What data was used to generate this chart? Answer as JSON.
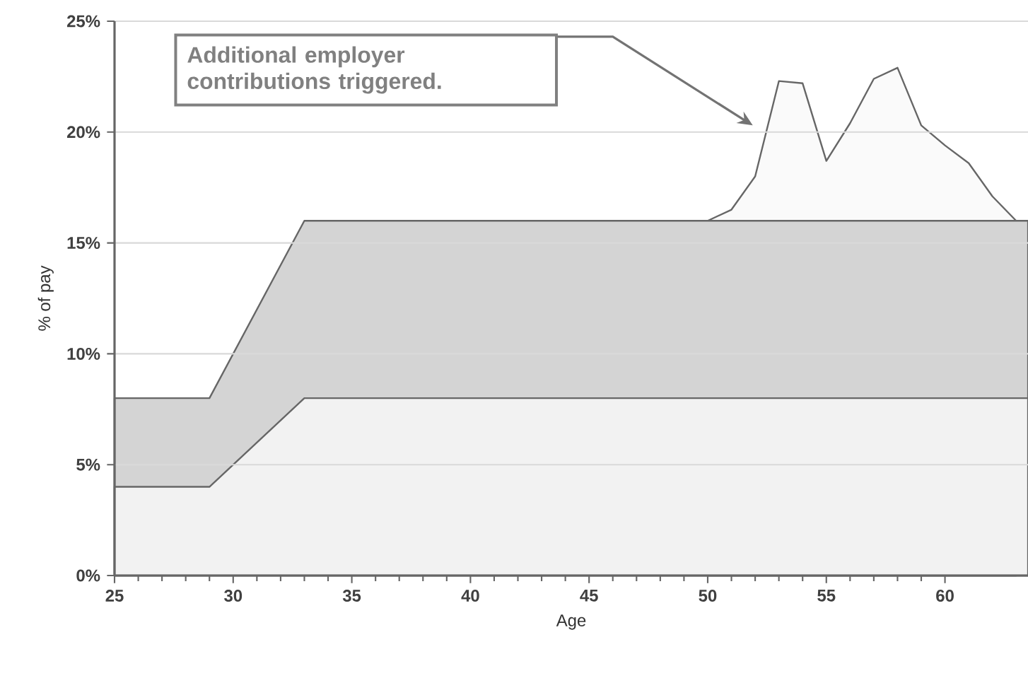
{
  "chart_data": {
    "type": "area",
    "xlabel": "Age",
    "ylabel": "% of pay",
    "xlim": [
      25,
      63.5
    ],
    "xticks": [
      25,
      30,
      35,
      40,
      45,
      50,
      55,
      60
    ],
    "ylim": [
      0,
      25
    ],
    "yticks": [
      {
        "value": 0,
        "label": "0%"
      },
      {
        "value": 5,
        "label": "5%"
      },
      {
        "value": 10,
        "label": "10%"
      },
      {
        "value": 15,
        "label": "15%"
      },
      {
        "value": 20,
        "label": "20%"
      },
      {
        "value": 25,
        "label": "25%"
      }
    ],
    "grid": "y",
    "series": [
      {
        "color": "#fafafa",
        "x": [
          50,
          51,
          52,
          53,
          54,
          55,
          56,
          57,
          58,
          59,
          60,
          61,
          62,
          63
        ],
        "values": [
          16,
          16.5,
          18,
          22.3,
          22.2,
          18.7,
          20.4,
          22.4,
          22.9,
          20.3,
          19.4,
          18.6,
          17.1,
          16
        ]
      },
      {
        "color": "#d4d4d4",
        "x": [
          25,
          29,
          33,
          63.5
        ],
        "values": [
          8,
          8,
          16,
          16
        ]
      },
      {
        "color": "#f2f2f2",
        "x": [
          25,
          29,
          33,
          63.5
        ],
        "values": [
          4,
          4,
          8,
          8
        ]
      }
    ],
    "annotations": [
      "Additional employer contributions triggered."
    ]
  }
}
